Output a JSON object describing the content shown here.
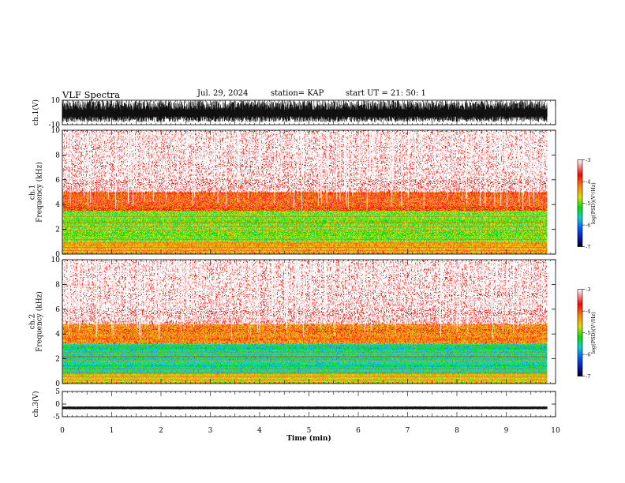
{
  "header": {
    "title": "VLF Spectra",
    "date": "Jul. 29, 2024",
    "station": "station= KAP",
    "start": "start  UT =   21: 50: 1"
  },
  "chart_data": [
    {
      "type": "line",
      "panel": "ch1-waveform",
      "ylabel": "ch.1(V)",
      "ylim": [
        -10,
        10
      ],
      "yticks": [
        10,
        -10
      ],
      "xlim": [
        0,
        10
      ],
      "data_extent_min": 9.83,
      "envelope": "dense black noise spanning roughly -8 to +10 V"
    },
    {
      "type": "heatmap",
      "panel": "ch1-spectrogram",
      "ylabel": "ch.1\nFrequency (kHz)",
      "ylim": [
        0,
        10
      ],
      "yticks": [
        0,
        2,
        4,
        6,
        8,
        10
      ],
      "xlim": [
        0,
        10
      ],
      "data_extent_min": 9.83,
      "colorbar": {
        "label": "log(PSD)(V²/Hz)",
        "range": [
          -7,
          -3
        ],
        "ticks": [
          -3,
          -4,
          -5,
          -6,
          -7
        ]
      },
      "bands": [
        {
          "freq_khz": [
            0,
            1.0
          ],
          "level": -4.4
        },
        {
          "freq_khz": [
            1.0,
            3.5
          ],
          "level": -5.0
        },
        {
          "freq_khz": [
            3.5,
            5.0
          ],
          "level": -4.0
        },
        {
          "freq_khz": [
            5.0,
            10.0
          ],
          "level": -3.3
        }
      ]
    },
    {
      "type": "heatmap",
      "panel": "ch2-spectrogram",
      "ylabel": "ch.2\nFrequency (kHz)",
      "ylim": [
        0,
        10
      ],
      "yticks": [
        0,
        2,
        4,
        6,
        8,
        10
      ],
      "xlim": [
        0,
        10
      ],
      "data_extent_min": 9.83,
      "colorbar": {
        "label": "log(PSD)(V²/Hz)",
        "range": [
          -7,
          -3
        ],
        "ticks": [
          -3,
          -4,
          -5,
          -6,
          -7
        ]
      },
      "bands": [
        {
          "freq_khz": [
            0,
            0.8
          ],
          "level": -4.6
        },
        {
          "freq_khz": [
            0.8,
            3.2
          ],
          "level": -5.5
        },
        {
          "freq_khz": [
            3.2,
            4.8
          ],
          "level": -4.2
        },
        {
          "freq_khz": [
            4.8,
            10.0
          ],
          "level": -3.3
        }
      ]
    },
    {
      "type": "line",
      "panel": "ch3-waveform",
      "ylabel": "ch.3(V)",
      "ylim": [
        -5,
        5
      ],
      "yticks": [
        5,
        0,
        -5
      ],
      "xlim": [
        0,
        10
      ],
      "data_extent_min": 9.83,
      "envelope": "narrow black band between about -2 and -1 V",
      "xlabel": "Time (min)",
      "xticks": [
        0,
        1,
        2,
        3,
        4,
        5,
        6,
        7,
        8,
        9,
        10
      ]
    }
  ]
}
